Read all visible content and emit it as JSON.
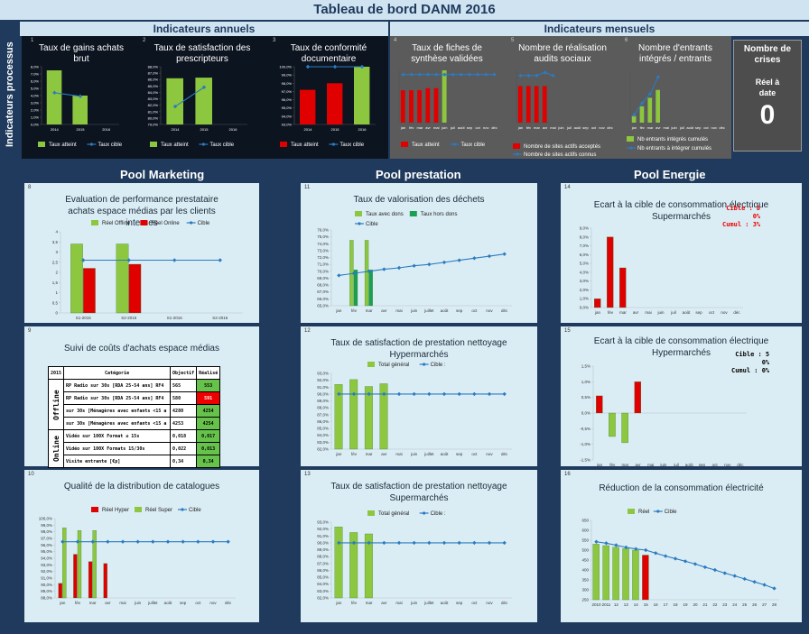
{
  "header": {
    "title": "Tableau de bord DANM 2016"
  },
  "sections": {
    "annual": "Indicateurs annuels",
    "monthly": "Indicateurs mensuels",
    "process_label": "Indicateurs processus"
  },
  "pools": {
    "marketing": "Pool Marketing",
    "prestation": "Pool prestation",
    "energie": "Pool Energie"
  },
  "mini": [
    {
      "num": "1",
      "title": "Taux de gains achats brut"
    },
    {
      "num": "2",
      "title": "Taux de satisfaction des prescripteurs"
    },
    {
      "num": "3",
      "title": "Taux de conformité documentaire"
    },
    {
      "num": "4",
      "title": "Taux de fiches de synthèse validées"
    },
    {
      "num": "5",
      "title": "Nombre de réalisation audits sociaux"
    },
    {
      "num": "6",
      "title": "Nombre d'entrants intégrés / entrants"
    }
  ],
  "crises": {
    "title": "Nombre de crises",
    "sub": "Réel à date",
    "value": "0"
  },
  "cards": [
    {
      "num": "8",
      "title": "Evaluation de performance prestataire achats espace médias par les clients internes"
    },
    {
      "num": "11",
      "title": "Taux de valorisation des déchets"
    },
    {
      "num": "14",
      "title": "Ecart à la cible de consommation électrique Supermarchés"
    },
    {
      "num": "9",
      "title": "Suivi de coûts d'achats espace médias"
    },
    {
      "num": "12",
      "title": "Taux de satisfaction de prestation nettoyage Hypermarchés"
    },
    {
      "num": "15",
      "title": "Ecart à la cible de consommation électrique Hypermarchés"
    },
    {
      "num": "10",
      "title": "Qualité de la distribution de catalogues"
    },
    {
      "num": "13",
      "title": "Taux de satisfaction de prestation nettoyage Supermarchés"
    },
    {
      "num": "16",
      "title": "Réduction de la consommation électricité"
    }
  ],
  "notes": {
    "super": [
      "Cible : 5",
      "0%",
      "Cumul : 3%"
    ],
    "hyper": [
      "Cible : 5",
      "0%",
      "Cumul : 0%"
    ]
  },
  "cost_table": {
    "headers": [
      "2015",
      "Catégorie",
      "Objectif",
      "Réalisé"
    ],
    "groups": [
      "Offline",
      "Online"
    ],
    "rows": [
      {
        "cat": "RP Radio sur 30s [RDA 25-54 ans] RF4",
        "obj": "565",
        "real": "553",
        "status": "green"
      },
      {
        "cat": "RP Radio sur 30s [RDA 25-54 ans] RF4",
        "obj": "580",
        "real": "591",
        "status": "red"
      },
      {
        "cat": "sur 30s [Ménagères avec enfants <15 a",
        "obj": "4280",
        "real": "4254",
        "status": "green"
      },
      {
        "cat": "sur 30s [Ménagères avec enfants <15 a",
        "obj": "4253",
        "real": "4254",
        "status": "green"
      },
      {
        "cat": "Vidéo sur 100X Format ≤ 15s",
        "obj": "0,018",
        "real": "0,017",
        "status": "green"
      },
      {
        "cat": "Vidéo sur 100X Formats 15/30s",
        "obj": "0,022",
        "real": "0,013",
        "status": "green"
      },
      {
        "cat": "Visite entrante [€p]",
        "obj": "0,34",
        "real": "0,34",
        "status": "green"
      }
    ]
  },
  "chart_data": [
    {
      "id": "m1",
      "type": "bar",
      "categories": [
        "2014",
        "2015",
        "2016"
      ],
      "ylim": [
        0,
        8
      ],
      "ytick_labels": [
        "0,0%",
        "1,0%",
        "2,0%",
        "3,0%",
        "4,0%",
        "5,0%",
        "6,0%",
        "7,0%",
        "8,0%"
      ],
      "series": [
        {
          "name": "Taux atteint",
          "values": [
            7.5,
            4.0,
            null
          ],
          "color": "#8dc63f"
        },
        {
          "name": "Taux cible",
          "values": [
            4.4,
            3.9,
            null
          ],
          "color": "#2b7bc0"
        }
      ]
    },
    {
      "id": "m2",
      "type": "bar",
      "categories": [
        "2014",
        "2015",
        "2016"
      ],
      "ylim": [
        79,
        88
      ],
      "ytick_labels": [
        "79,0%",
        "80,0%",
        "81,0%",
        "82,0%",
        "83,0%",
        "84,0%",
        "85,0%",
        "86,0%",
        "87,0%",
        "88,0%"
      ],
      "series": [
        {
          "name": "Taux atteint",
          "values": [
            86.2,
            86.3,
            null
          ],
          "color": "#8dc63f"
        },
        {
          "name": "Taux cible",
          "values": [
            81.8,
            84.8,
            null
          ],
          "color": "#2b7bc0"
        }
      ]
    },
    {
      "id": "m3",
      "type": "bar",
      "categories": [
        "2014",
        "2015",
        "2016"
      ],
      "ylim": [
        93,
        100
      ],
      "ytick_labels": [
        "93,0%",
        "94,0%",
        "95,0%",
        "96,0%",
        "97,0%",
        "98,0%",
        "99,0%",
        "100,0%"
      ],
      "series": [
        {
          "name": "Taux atteint",
          "values": [
            97.2,
            98.0,
            100.0
          ],
          "color": "#e00000",
          "last_color": "#8dc63f"
        },
        {
          "name": "Taux cible",
          "values": [
            100.0,
            100.0,
            100.0
          ],
          "color": "#2b7bc0"
        }
      ]
    },
    {
      "id": "m4",
      "type": "bar",
      "categories": [
        "jan",
        "fév",
        "mar",
        "avr",
        "mai",
        "juin",
        "juil",
        "août",
        "sep",
        "oct",
        "nov",
        "déc"
      ],
      "ylim": [
        0,
        100
      ],
      "series": [
        {
          "name": "Taux atteint",
          "values": [
            62,
            62,
            62,
            66,
            66,
            100,
            null,
            null,
            null,
            null,
            null,
            null
          ],
          "color": "#e00000",
          "highlight": 5
        },
        {
          "name": "Taux cible",
          "values": [
            92,
            92,
            92,
            92,
            92,
            92,
            92,
            92,
            92,
            92,
            92,
            92
          ],
          "color": "#2b7bc0"
        }
      ]
    },
    {
      "id": "m5",
      "type": "bar",
      "categories": [
        "jan",
        "fév",
        "mar",
        "avr",
        "mai",
        "juin",
        "juil",
        "août",
        "sep",
        "oct",
        "nov",
        "déc"
      ],
      "ylim": [
        0,
        100
      ],
      "series": [
        {
          "name": "Nombre de sites actifs acceptés",
          "values": [
            70,
            70,
            70,
            70,
            null,
            null,
            null,
            null,
            null,
            null,
            null,
            null
          ],
          "color": "#e00000"
        },
        {
          "name": "Nombre de sites actifs connus",
          "values": [
            90,
            90,
            90,
            96,
            90,
            null,
            null,
            null,
            null,
            null,
            null,
            null
          ],
          "color": "#2b7bc0"
        }
      ]
    },
    {
      "id": "m6",
      "type": "bar",
      "categories": [
        "jan",
        "fév",
        "mar",
        "avr",
        "mai",
        "juin",
        "juil",
        "août",
        "sep",
        "oct",
        "nov",
        "déc"
      ],
      "ylim": [
        0,
        80
      ],
      "series": [
        {
          "name": "Nb entrants intégrés cumulés",
          "values": [
            10,
            25,
            38,
            50,
            null,
            null,
            null,
            null,
            null,
            null,
            null,
            null
          ],
          "color": "#8dc63f"
        },
        {
          "name": "Nb entrants à intégrer cumulés",
          "values": [
            12,
            30,
            44,
            70,
            null,
            null,
            null,
            null,
            null,
            null,
            null,
            null
          ],
          "color": "#2b7bc0"
        }
      ]
    },
    {
      "id": "c8",
      "type": "bar",
      "categories": [
        "S1-2015",
        "S2-2015",
        "S1-2016",
        "S2-2016"
      ],
      "ylim": [
        0,
        4
      ],
      "yticks": [
        "0",
        "0,5",
        "1",
        "1,5",
        "2",
        "2,5",
        "3",
        "3,5",
        "4"
      ],
      "series": [
        {
          "name": "Réel Offline",
          "values": [
            3.4,
            3.4,
            null,
            null
          ],
          "color": "#8dc63f"
        },
        {
          "name": "Réel Online",
          "values": [
            2.2,
            2.4,
            null,
            null
          ],
          "color": "#e00000"
        },
        {
          "name": "Cible",
          "values": [
            2.6,
            2.6,
            2.6,
            2.6
          ],
          "color": "#2b7bc0"
        }
      ]
    },
    {
      "id": "c11",
      "type": "bar",
      "categories": [
        "jan",
        "fév",
        "mar",
        "avr",
        "mai",
        "juin",
        "juillet",
        "août",
        "sep",
        "oct",
        "nov",
        "déc"
      ],
      "ylim": [
        65,
        76
      ],
      "yticks": [
        "65,0%",
        "66,0%",
        "67,0%",
        "68,0%",
        "69,0%",
        "70,0%",
        "71,0%",
        "72,0%",
        "73,0%",
        "74,0%",
        "75,0%",
        "76,0%"
      ],
      "series": [
        {
          "name": "Taux avec dons",
          "values": [
            null,
            74.5,
            74.5,
            null,
            null,
            null,
            null,
            null,
            null,
            null,
            null,
            null
          ],
          "color": "#8dc63f"
        },
        {
          "name": "Taux hors dons",
          "values": [
            null,
            70.2,
            70.2,
            null,
            null,
            null,
            null,
            null,
            null,
            null,
            null,
            null
          ],
          "color": "#1aa052"
        },
        {
          "name": "Cible",
          "values": [
            69.4,
            69.7,
            70.0,
            70.3,
            70.5,
            70.8,
            71.0,
            71.3,
            71.6,
            71.9,
            72.2,
            72.5
          ],
          "color": "#2b7bc0"
        }
      ]
    },
    {
      "id": "c14",
      "type": "bar",
      "categories": [
        "jan",
        "fév",
        "mar",
        "avr",
        "mai",
        "juin",
        "juil",
        "août",
        "sep",
        "oct",
        "nov",
        "déc"
      ],
      "ylim": [
        0,
        9
      ],
      "yticks": [
        "0,0%",
        "1,0%",
        "2,0%",
        "3,0%",
        "4,0%",
        "5,0%",
        "6,0%",
        "7,0%",
        "8,0%",
        "9,0%"
      ],
      "series": [
        {
          "name": "Ecart",
          "values": [
            1.0,
            8.0,
            4.5,
            null,
            null,
            null,
            null,
            null,
            null,
            null,
            null,
            null
          ],
          "color": "#e00000"
        }
      ]
    },
    {
      "id": "c12",
      "type": "bar",
      "categories": [
        "jan",
        "fév",
        "mar",
        "avr",
        "mai",
        "juin",
        "juillet",
        "août",
        "sep",
        "oct",
        "nov",
        "déc"
      ],
      "ylim": [
        82,
        93
      ],
      "yticks": [
        "82,0%",
        "83,0%",
        "84,0%",
        "85,0%",
        "86,0%",
        "87,0%",
        "88,0%",
        "89,0%",
        "90,0%",
        "91,0%",
        "92,0%",
        "93,0%"
      ],
      "series": [
        {
          "name": "Total général",
          "values": [
            91.4,
            92.1,
            91.1,
            91.5,
            null,
            null,
            null,
            null,
            null,
            null,
            null,
            null
          ],
          "color": "#8dc63f"
        },
        {
          "name": "Cible :",
          "values": [
            90,
            90,
            90,
            90,
            90,
            90,
            90,
            90,
            90,
            90,
            90,
            90
          ],
          "color": "#2b7bc0"
        }
      ]
    },
    {
      "id": "c15",
      "type": "bar",
      "categories": [
        "jan",
        "fév",
        "mar",
        "avr",
        "mai",
        "juin",
        "juil",
        "août",
        "sep",
        "oct",
        "nov",
        "déc"
      ],
      "ylim": [
        -1.5,
        1.5
      ],
      "yticks": [
        "-1,5%",
        "-1,0%",
        "-0,5%",
        "0,0%",
        "0,5%",
        "1,0%",
        "1,5%"
      ],
      "series": [
        {
          "name": "Ecart",
          "values": [
            0.55,
            -0.75,
            -0.95,
            1.0,
            null,
            null,
            null,
            null,
            null,
            null,
            null,
            null
          ],
          "colors": [
            "#e00000",
            "#8dc63f",
            "#8dc63f",
            "#e00000"
          ]
        }
      ]
    },
    {
      "id": "c10",
      "type": "bar",
      "categories": [
        "jan",
        "fév",
        "mar",
        "avr",
        "mai",
        "juin",
        "juillet",
        "août",
        "sep",
        "oct",
        "nov",
        "déc"
      ],
      "ylim": [
        88,
        100
      ],
      "yticks": [
        "88,0%",
        "89,0%",
        "90,0%",
        "91,0%",
        "92,0%",
        "93,0%",
        "94,0%",
        "95,0%",
        "96,0%",
        "97,0%",
        "98,0%",
        "99,0%",
        "100,0%"
      ],
      "series": [
        {
          "name": "Réel Hyper",
          "values": [
            90.2,
            94.6,
            93.5,
            93.2,
            null,
            null,
            null,
            null,
            null,
            null,
            null,
            null
          ],
          "color": "#e00000"
        },
        {
          "name": "Réel Super",
          "values": [
            98.6,
            98.2,
            98.2,
            null,
            null,
            null,
            null,
            null,
            null,
            null,
            null,
            null
          ],
          "color": "#8dc63f"
        },
        {
          "name": "Cible",
          "values": [
            96.5,
            96.5,
            96.5,
            96.5,
            96.5,
            96.5,
            96.5,
            96.5,
            96.5,
            96.5,
            96.5,
            96.5
          ],
          "color": "#2b7bc0"
        }
      ]
    },
    {
      "id": "c13",
      "type": "bar",
      "categories": [
        "jan",
        "fév",
        "mar",
        "avr",
        "mai",
        "juin",
        "juillet",
        "août",
        "sep",
        "oct",
        "nov",
        "déc"
      ],
      "ylim": [
        82,
        93
      ],
      "yticks": [
        "82,0%",
        "83,0%",
        "84,0%",
        "85,0%",
        "86,0%",
        "87,0%",
        "88,0%",
        "89,0%",
        "90,0%",
        "91,0%",
        "92,0%",
        "93,0%"
      ],
      "series": [
        {
          "name": "Total général",
          "values": [
            92.3,
            91.5,
            91.3,
            null,
            null,
            null,
            null,
            null,
            null,
            null,
            null,
            null
          ],
          "color": "#8dc63f"
        },
        {
          "name": "Cible :",
          "values": [
            90,
            90,
            90,
            90,
            90,
            90,
            90,
            90,
            90,
            90,
            90,
            90
          ],
          "color": "#2b7bc0"
        }
      ]
    },
    {
      "id": "c16",
      "type": "bar",
      "categories": [
        "2010",
        "2011",
        "12",
        "13",
        "14",
        "15",
        "16",
        "17",
        "18",
        "19",
        "20",
        "21",
        "22",
        "23",
        "24",
        "25",
        "26",
        "27",
        "28"
      ],
      "ylim": [
        250,
        650
      ],
      "yticks": [
        "250",
        "300",
        "350",
        "400",
        "450",
        "500",
        "550",
        "600",
        "650"
      ],
      "series": [
        {
          "name": "Réel",
          "values": [
            530,
            523,
            515,
            508,
            500,
            475,
            null,
            null,
            null,
            null,
            null,
            null,
            null,
            null,
            null,
            null,
            null,
            null,
            null
          ],
          "color": "#8dc63f",
          "last_color": "#e00000"
        },
        {
          "name": "Cible",
          "values": [
            542,
            535,
            525,
            514,
            506,
            500,
            485,
            470,
            457,
            444,
            430,
            414,
            400,
            384,
            370,
            355,
            340,
            325,
            307
          ],
          "color": "#2b7bc0"
        }
      ]
    }
  ]
}
